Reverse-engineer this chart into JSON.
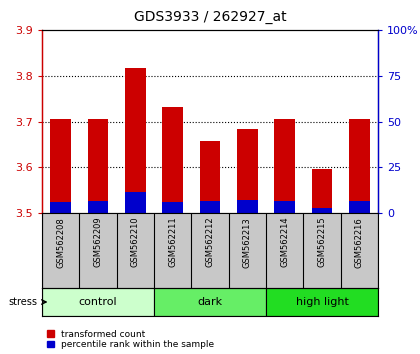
{
  "title": "GDS3933 / 262927_at",
  "samples": [
    "GSM562208",
    "GSM562209",
    "GSM562210",
    "GSM562211",
    "GSM562212",
    "GSM562213",
    "GSM562214",
    "GSM562215",
    "GSM562216"
  ],
  "red_values": [
    3.706,
    3.706,
    3.818,
    3.732,
    3.658,
    3.683,
    3.706,
    3.596,
    3.706
  ],
  "blue_values": [
    3.524,
    3.527,
    3.546,
    3.524,
    3.526,
    3.528,
    3.527,
    3.51,
    3.527
  ],
  "bar_base": 3.5,
  "ylim": [
    3.5,
    3.9
  ],
  "yticks_left": [
    3.5,
    3.6,
    3.7,
    3.8,
    3.9
  ],
  "yticks_right": [
    0,
    25,
    50,
    75,
    100
  ],
  "groups": [
    {
      "label": "control",
      "start": 0,
      "end": 3,
      "color": "#ccffcc"
    },
    {
      "label": "dark",
      "start": 3,
      "end": 6,
      "color": "#66ee66"
    },
    {
      "label": "high light",
      "start": 6,
      "end": 9,
      "color": "#22dd22"
    }
  ],
  "stress_label": "stress",
  "red_color": "#cc0000",
  "blue_color": "#0000cc",
  "left_axis_color": "#cc0000",
  "right_axis_color": "#0000cc",
  "bg_color": "#ffffff",
  "label_bg": "#c8c8c8",
  "legend_red": "transformed count",
  "legend_blue": "percentile rank within the sample",
  "bar_width": 0.55
}
